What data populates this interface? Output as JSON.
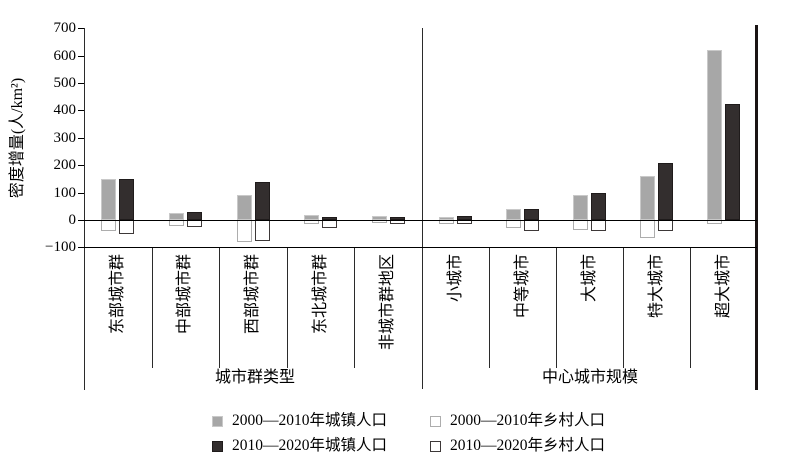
{
  "chart_data": {
    "type": "bar",
    "title": "",
    "ylabel": "密度增量(人/km²)",
    "ylim": [
      -100,
      700
    ],
    "grid": false,
    "legend_position": "bottom",
    "yticks": [
      {
        "label": "700",
        "value": 700
      },
      {
        "label": "600",
        "value": 600
      },
      {
        "label": "500",
        "value": 500
      },
      {
        "label": "400",
        "value": 400
      },
      {
        "label": "300",
        "value": 300
      },
      {
        "label": "200",
        "value": 200
      },
      {
        "label": "100",
        "value": 100
      },
      {
        "label": "0",
        "value": 0
      },
      {
        "label": "−100",
        "value": -100
      }
    ],
    "groups": [
      {
        "label": "城市群类型",
        "categories": [
          "东部城市群",
          "中部城市群",
          "西部城市群",
          "东北城市群",
          "非城市群地区"
        ]
      },
      {
        "label": "中心城市规模",
        "categories": [
          "小城市",
          "中等城市",
          "大城市",
          "特大城市",
          "超大城市"
        ]
      }
    ],
    "series": [
      {
        "name": "2000—2010年城镇人口",
        "swatch": "gray",
        "values": [
          150,
          25,
          90,
          20,
          15,
          10,
          40,
          90,
          160,
          620
        ]
      },
      {
        "name": "2000—2010年乡村人口",
        "swatch": "white-gray",
        "values": [
          -40,
          -20,
          -80,
          -15,
          -10,
          -15,
          -30,
          -35,
          -65,
          -15
        ]
      },
      {
        "name": "2010—2020年城镇人口",
        "swatch": "dark",
        "values": [
          150,
          30,
          140,
          10,
          10,
          15,
          40,
          100,
          210,
          425
        ]
      },
      {
        "name": "2010—2020年乡村人口",
        "swatch": "white-dark",
        "values": [
          -50,
          -25,
          -75,
          -30,
          -15,
          -15,
          -40,
          -40,
          -40,
          0
        ]
      }
    ]
  },
  "colors": {
    "gray_fill": "#a7a7a7",
    "gray_border": "#c9c9c9",
    "dark_fill": "#332e2e",
    "dark_border": "#1f1b1b",
    "white_fill": "#ffffff",
    "white_gray_border": "#adadad",
    "white_dark_border": "#3d3838",
    "axis": "#000000"
  }
}
